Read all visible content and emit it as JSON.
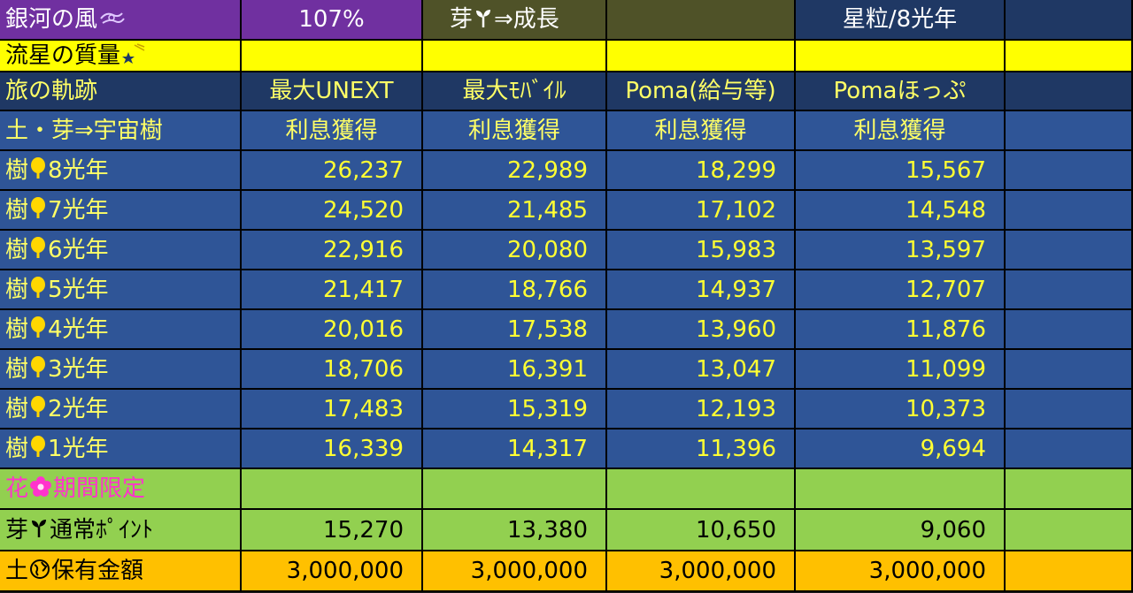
{
  "title_row": {
    "name": "銀河の風",
    "rate": "107%",
    "sprout_label_pre": "芽",
    "sprout_label_post": "⇒成長",
    "star_grains": "星粒/8光年"
  },
  "meteor_row": {
    "label": "流星の質量"
  },
  "header_row": {
    "label": "旅の軌跡",
    "columns": [
      "最大UNEXT",
      "最大ﾓﾊﾞｲﾙ",
      "Poma(給与等)",
      "Pomaほっぷ"
    ]
  },
  "sub_header_row": {
    "label": "土・芽⇒宇宙樹",
    "columns": [
      "利息獲得",
      "利息獲得",
      "利息獲得",
      "利息獲得"
    ]
  },
  "tree_rows": [
    {
      "label_pre": "樹",
      "label_post": "8光年",
      "values": [
        "26,237",
        "22,989",
        "18,299",
        "15,567"
      ]
    },
    {
      "label_pre": "樹",
      "label_post": "7光年",
      "values": [
        "24,520",
        "21,485",
        "17,102",
        "14,548"
      ]
    },
    {
      "label_pre": "樹",
      "label_post": "6光年",
      "values": [
        "22,916",
        "20,080",
        "15,983",
        "13,597"
      ]
    },
    {
      "label_pre": "樹",
      "label_post": "5光年",
      "values": [
        "21,417",
        "18,766",
        "14,937",
        "12,707"
      ]
    },
    {
      "label_pre": "樹",
      "label_post": "4光年",
      "values": [
        "20,016",
        "17,538",
        "13,960",
        "11,876"
      ]
    },
    {
      "label_pre": "樹",
      "label_post": "3光年",
      "values": [
        "18,706",
        "16,391",
        "13,047",
        "11,099"
      ]
    },
    {
      "label_pre": "樹",
      "label_post": "2光年",
      "values": [
        "17,483",
        "15,319",
        "12,193",
        "10,373"
      ]
    },
    {
      "label_pre": "樹",
      "label_post": "1光年",
      "values": [
        "16,339",
        "14,317",
        "11,396",
        "9,694"
      ]
    }
  ],
  "flower_row": {
    "label_pre": "花",
    "label_post": "期間限定"
  },
  "sprout_row": {
    "label_pre": "芽",
    "label_post": "通常ﾎﾟｲﾝﾄ",
    "values": [
      "15,270",
      "13,380",
      "10,650",
      "9,060"
    ]
  },
  "soil_row": {
    "label_pre": "土",
    "label_post": "保有金額",
    "values": [
      "3,000,000",
      "3,000,000",
      "3,000,000",
      "3,000,000"
    ]
  },
  "icons": {
    "wind": "wind-swirl-icon",
    "sprout": "sprout-icon",
    "shooting_star": "shooting-star-icon",
    "tree": "tree-icon",
    "flower": "flower-icon",
    "globe": "globe-icon"
  },
  "colors": {
    "purple": "#7030a0",
    "olive": "#4f5228",
    "navy": "#1f3864",
    "blue": "#2f5597",
    "yellow": "#ffff00",
    "green": "#92d050",
    "orange": "#ffc000",
    "text_yellow": "#ffff33",
    "pink": "#ff33cc"
  }
}
